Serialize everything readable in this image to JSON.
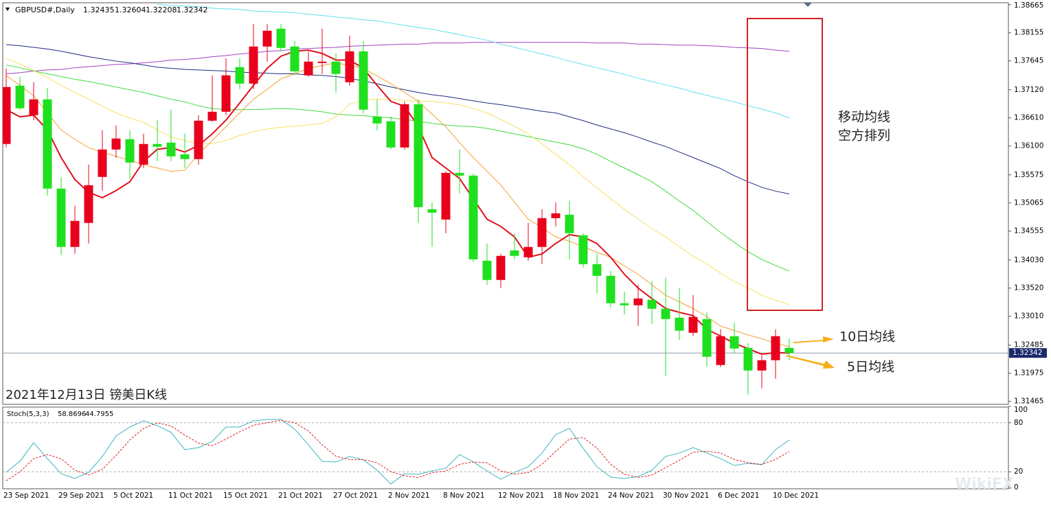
{
  "chart_data": [
    {
      "type": "candlestick",
      "title": "GBPUSD#,Daily",
      "categories": [
        "23 Sep 2021",
        null,
        null,
        null,
        "29 Sep 2021",
        null,
        null,
        null,
        "5 Oct 2021",
        null,
        null,
        null,
        "11 Oct 2021",
        null,
        null,
        null,
        "15 Oct 2021",
        null,
        null,
        null,
        "21 Oct 2021",
        null,
        null,
        null,
        "27 Oct 2021",
        null,
        null,
        null,
        "2 Nov 2021",
        null,
        null,
        null,
        "8 Nov 2021",
        null,
        null,
        null,
        "12 Nov 2021",
        null,
        null,
        null,
        "18 Nov 2021",
        null,
        null,
        null,
        "24 Nov 2021",
        null,
        null,
        null,
        "30 Nov 2021",
        null,
        null,
        null,
        "6 Dec 2021",
        null,
        null,
        null,
        "10 Dec 2021",
        null
      ],
      "open": [
        1.36136,
        1.37195,
        1.36659,
        1.36946,
        1.35326,
        1.34267,
        1.34703,
        1.35538,
        1.36036,
        1.36223,
        1.35762,
        1.36136,
        1.36161,
        1.35949,
        1.35862,
        1.36559,
        1.36721,
        1.37531,
        1.37232,
        1.37905,
        1.38229,
        1.37905,
        1.37382,
        1.37606,
        1.37631,
        1.37257,
        1.37818,
        1.36634,
        1.36547,
        1.36073,
        1.36858,
        1.34952,
        1.34765,
        1.35612,
        1.35562,
        1.34017,
        1.33668,
        1.34204,
        1.3408,
        1.34267,
        1.3479,
        1.34852,
        1.34479,
        1.33955,
        1.33743,
        1.33245,
        1.33208,
        1.33307,
        1.33145,
        1.32983,
        1.32709,
        1.32958,
        1.32124,
        1.32647,
        1.32435,
        1.32024,
        1.32211,
        1.32435
      ],
      "high": [
        1.37506,
        1.37357,
        1.37257,
        1.37157,
        1.35538,
        1.35014,
        1.35762,
        1.36385,
        1.36472,
        1.36385,
        1.36323,
        1.36572,
        1.36759,
        1.36323,
        1.36659,
        1.37382,
        1.37693,
        1.37693,
        1.38316,
        1.38316,
        1.38316,
        1.38005,
        1.37818,
        1.38229,
        1.3778,
        1.38104,
        1.38005,
        1.36946,
        1.36634,
        1.36908,
        1.36946,
        1.35077,
        1.35637,
        1.36036,
        1.356,
        1.34329,
        1.34142,
        1.34516,
        1.34703,
        1.34952,
        1.35077,
        1.35101,
        1.34516,
        1.34142,
        1.3383,
        1.33457,
        1.33581,
        1.33643,
        1.33706,
        1.33519,
        1.33394,
        1.33083,
        1.32772,
        1.32896,
        1.32522,
        1.32298,
        1.32772,
        1.32604
      ],
      "low": [
        1.36073,
        1.36759,
        1.36572,
        1.35201,
        1.34117,
        1.34142,
        1.34329,
        1.35288,
        1.35886,
        1.35513,
        1.357,
        1.35824,
        1.35824,
        1.357,
        1.35762,
        1.36534,
        1.36659,
        1.37132,
        1.37132,
        1.37631,
        1.37818,
        1.37382,
        1.37357,
        1.37407,
        1.3707,
        1.37195,
        1.36696,
        1.36385,
        1.36036,
        1.36036,
        1.34703,
        1.34267,
        1.34516,
        1.35238,
        1.33993,
        1.33581,
        1.33519,
        1.34042,
        1.34017,
        1.33955,
        1.3464,
        1.34042,
        1.33893,
        1.33419,
        1.3317,
        1.33046,
        1.32834,
        1.32871,
        1.31924,
        1.32585,
        1.32647,
        1.32086,
        1.32086,
        1.32335,
        1.31588,
        1.317,
        1.31874,
        1.32208
      ],
      "close": [
        1.3717,
        1.36784,
        1.36946,
        1.35326,
        1.34267,
        1.3474,
        1.35388,
        1.36036,
        1.36235,
        1.35799,
        1.36136,
        1.36086,
        1.35911,
        1.35862,
        1.36559,
        1.36721,
        1.37382,
        1.37232,
        1.37905,
        1.38192,
        1.3788,
        1.37456,
        1.37631,
        1.37631,
        1.37407,
        1.37818,
        1.36759,
        1.36509,
        1.36073,
        1.36858,
        1.34989,
        1.3489,
        1.35612,
        1.35562,
        1.34042,
        1.33668,
        1.34105,
        1.34105,
        1.34267,
        1.3479,
        1.34877,
        1.34516,
        1.33955,
        1.33743,
        1.33245,
        1.33208,
        1.33332,
        1.33145,
        1.32958,
        1.32747,
        1.32996,
        1.32273,
        1.32647,
        1.32423,
        1.32024,
        1.32211,
        1.32647,
        1.32342
      ],
      "up_color": "#e8001c",
      "down_color": "#1fe01f",
      "series": [
        {
          "color": "#a040c0",
          "values": [
            1.3741,
            1.3743,
            1.3746,
            1.3748,
            1.3749,
            1.3752,
            1.3754,
            1.3756,
            1.3758,
            1.3759,
            1.3761,
            1.3763,
            1.3766,
            1.3767,
            1.3769,
            1.3772,
            1.3774,
            1.3777,
            1.3779,
            1.3782,
            1.3783,
            1.3786,
            1.3787,
            1.3788,
            1.3789,
            1.3791,
            1.3792,
            1.3793,
            1.3794,
            1.3795,
            1.3795,
            1.3797,
            1.3797,
            1.3797,
            1.3798,
            1.3798,
            1.3798,
            1.3798,
            1.3798,
            1.3798,
            1.3798,
            1.3798,
            1.3798,
            1.3797,
            1.3797,
            1.3797,
            1.3795,
            1.3795,
            1.3794,
            1.3793,
            1.3793,
            1.3792,
            1.3791,
            1.3789,
            1.3788,
            1.3787,
            1.3784,
            1.3782
          ]
        },
        {
          "color": "#5fe0f0",
          "values": [
            null,
            null,
            null,
            null,
            null,
            null,
            null,
            null,
            null,
            null,
            null,
            1.3867,
            1.3865,
            1.3864,
            1.3863,
            1.386,
            1.3859,
            1.3858,
            1.3855,
            1.3854,
            1.3853,
            1.3852,
            1.3849,
            1.3847,
            1.3844,
            1.3842,
            1.3839,
            1.3837,
            1.3833,
            1.3829,
            1.3825,
            1.3822,
            1.3817,
            1.3812,
            1.3807,
            1.3802,
            1.3795,
            1.3789,
            1.3783,
            1.3777,
            1.3771,
            1.3764,
            1.3758,
            1.3752,
            1.3746,
            1.374,
            1.3733,
            1.3727,
            1.3721,
            1.3715,
            1.3708,
            1.3702,
            1.3696,
            1.369,
            1.3683,
            1.3677,
            1.367,
            1.3661
          ]
        },
        {
          "color": "#1f2a80",
          "values": [
            1.3794,
            1.3792,
            1.3789,
            1.3786,
            1.3782,
            1.3777,
            1.3772,
            1.3768,
            1.3764,
            1.3761,
            1.3757,
            1.3753,
            1.3751,
            1.3749,
            1.3748,
            1.3747,
            1.3746,
            1.3744,
            1.3743,
            1.3742,
            1.3741,
            1.3741,
            1.3739,
            1.3738,
            1.3736,
            1.3733,
            1.3728,
            1.3723,
            1.3717,
            1.3712,
            1.3707,
            1.3703,
            1.37,
            1.3696,
            1.3692,
            1.3688,
            1.3685,
            1.3681,
            1.3677,
            1.3673,
            1.367,
            1.3663,
            1.3656,
            1.3648,
            1.3641,
            1.3634,
            1.3626,
            1.3617,
            1.3609,
            1.3599,
            1.3589,
            1.3579,
            1.3569,
            1.3556,
            1.3545,
            1.3535,
            1.3528,
            1.3523
          ]
        },
        {
          "color": "#3ddc3d",
          "values": [
            1.3757,
            1.3752,
            1.3746,
            1.3741,
            1.3736,
            1.3731,
            1.3727,
            1.3722,
            1.3717,
            1.3712,
            1.3707,
            1.3701,
            1.3695,
            1.369,
            1.3683,
            1.3678,
            1.3676,
            1.3676,
            1.3676,
            1.3677,
            1.3678,
            1.3677,
            1.3675,
            1.3672,
            1.3668,
            1.3666,
            1.3665,
            1.3663,
            1.3661,
            1.3658,
            1.3655,
            1.3651,
            1.3648,
            1.3646,
            1.3645,
            1.3642,
            1.3637,
            1.3632,
            1.3627,
            1.3622,
            1.3617,
            1.3612,
            1.3605,
            1.3595,
            1.3582,
            1.357,
            1.3558,
            1.3545,
            1.3528,
            1.351,
            1.3493,
            1.3473,
            1.3453,
            1.3435,
            1.3418,
            1.3404,
            1.3393,
            1.3383
          ]
        },
        {
          "color": "#f8e060",
          "values": [
            1.3769,
            1.3759,
            1.3747,
            1.3734,
            1.372,
            1.3707,
            1.3695,
            1.3682,
            1.367,
            1.3661,
            1.3653,
            1.3639,
            1.3626,
            1.362,
            1.3614,
            1.3614,
            1.362,
            1.3629,
            1.3636,
            1.3641,
            1.3644,
            1.3646,
            1.3648,
            1.3651,
            1.3663,
            1.3686,
            1.3693,
            1.3695,
            1.3695,
            1.3693,
            1.3691,
            1.3691,
            1.3688,
            1.3685,
            1.3678,
            1.367,
            1.3658,
            1.3646,
            1.3632,
            1.3614,
            1.3595,
            1.3576,
            1.3554,
            1.3534,
            1.3514,
            1.3495,
            1.3477,
            1.346,
            1.3445,
            1.3427,
            1.341,
            1.3396,
            1.3379,
            1.3364,
            1.3352,
            1.3339,
            1.333,
            1.3322
          ]
        },
        {
          "color": "#f5a030",
          "values": [
            1.3738,
            1.372,
            1.3701,
            1.367,
            1.3639,
            1.3622,
            1.3607,
            1.3599,
            1.3591,
            1.3584,
            1.3576,
            1.357,
            1.3564,
            1.3566,
            1.3595,
            1.362,
            1.3645,
            1.367,
            1.3695,
            1.3713,
            1.3732,
            1.3741,
            1.3751,
            1.3756,
            1.3761,
            1.3756,
            1.3751,
            1.3737,
            1.3723,
            1.3707,
            1.3691,
            1.3668,
            1.3645,
            1.3616,
            1.3589,
            1.3564,
            1.3539,
            1.3508,
            1.3477,
            1.3462,
            1.3445,
            1.3437,
            1.3427,
            1.3417,
            1.3408,
            1.3392,
            1.3377,
            1.3358,
            1.3339,
            1.3327,
            1.3315,
            1.33,
            1.3283,
            1.3275,
            1.3267,
            1.326,
            1.3252,
            1.3246
          ]
        },
        {
          "color": "#e0101a",
          "width": 2,
          "values": [
            1.3676,
            1.3663,
            1.3666,
            1.3639,
            1.3589,
            1.3549,
            1.3526,
            1.3516,
            1.3529,
            1.3545,
            1.3582,
            1.3604,
            1.3607,
            1.3599,
            1.3611,
            1.3632,
            1.3657,
            1.3688,
            1.372,
            1.3751,
            1.3773,
            1.3782,
            1.3784,
            1.3778,
            1.3766,
            1.3766,
            1.3751,
            1.372,
            1.3691,
            1.3682,
            1.3645,
            1.3589,
            1.357,
            1.3551,
            1.3514,
            1.3477,
            1.3464,
            1.3445,
            1.3408,
            1.3414,
            1.3433,
            1.3449,
            1.3445,
            1.3433,
            1.3408,
            1.3377,
            1.3352,
            1.3333,
            1.3315,
            1.3308,
            1.3302,
            1.3277,
            1.3265,
            1.3252,
            1.3242,
            1.3232,
            1.3235,
            1.3234
          ]
        }
      ],
      "ylim": [
        1.3141,
        1.387
      ],
      "yticks": [
        1.38665,
        1.38155,
        1.37645,
        {
          "value": 1.3712,
          "label": "1.37120"
        },
        {
          "value": 1.3661,
          "label": "1.36610"
        },
        {
          "value": 1.361,
          "label": "1.36100"
        },
        1.35575,
        1.35065,
        1.34555,
        {
          "value": 1.3403,
          "label": "1.34030"
        },
        {
          "value": 1.3352,
          "label": "1.33520"
        },
        {
          "value": 1.3301,
          "label": "1.33010"
        },
        1.32485,
        1.31975,
        1.31465
      ],
      "annotations": [
        "移动均线",
        "空方排列",
        "10日均线",
        "5日均线",
        "2021年12月13日 镑美日K线",
        "WikiFX"
      ]
    },
    {
      "type": "line",
      "title": "Stoch(5,3,3)",
      "series": [
        {
          "color": "#3cb4c0",
          "values": [
            19.3,
            32.8,
            55.5,
            36.1,
            17.6,
            11.8,
            19.3,
            38.7,
            63.9,
            74.8,
            82.4,
            76.5,
            68.1,
            47.1,
            49.6,
            57.1,
            74.8,
            74.8,
            82.4,
            84.0,
            84.0,
            72.3,
            52.9,
            32.8,
            31.9,
            38.7,
            34.5,
            21.8,
            5.0,
            17.6,
            16.8,
            21.0,
            24.4,
            41.2,
            31.9,
            21.0,
            10.9,
            19.3,
            26.1,
            42.9,
            65.5,
            73.1,
            48.7,
            26.1,
            13.4,
            11.8,
            14.3,
            21.8,
            38.7,
            42.9,
            49.6,
            42.9,
            36.1,
            27.7,
            30.3,
            28.6,
            47.1,
            58.8696
          ]
        },
        {
          "color": "#e02020",
          "dashed": true,
          "values": [
            9,
            20,
            36,
            41,
            36,
            22,
            16,
            23,
            40,
            59,
            73,
            80,
            76,
            65,
            55,
            52,
            60,
            69,
            77,
            80,
            83,
            80,
            70,
            53,
            39,
            35,
            35,
            31,
            20,
            15,
            13,
            19,
            21,
            29,
            32,
            31,
            21,
            17,
            19,
            29,
            45,
            60,
            62,
            49,
            29,
            17,
            13,
            16,
            25,
            34,
            44,
            45,
            43,
            35,
            31,
            29,
            35,
            44.7955
          ]
        }
      ],
      "ylim": [
        0,
        100
      ],
      "yticks": [
        0,
        20,
        80,
        100
      ]
    }
  ]
}
